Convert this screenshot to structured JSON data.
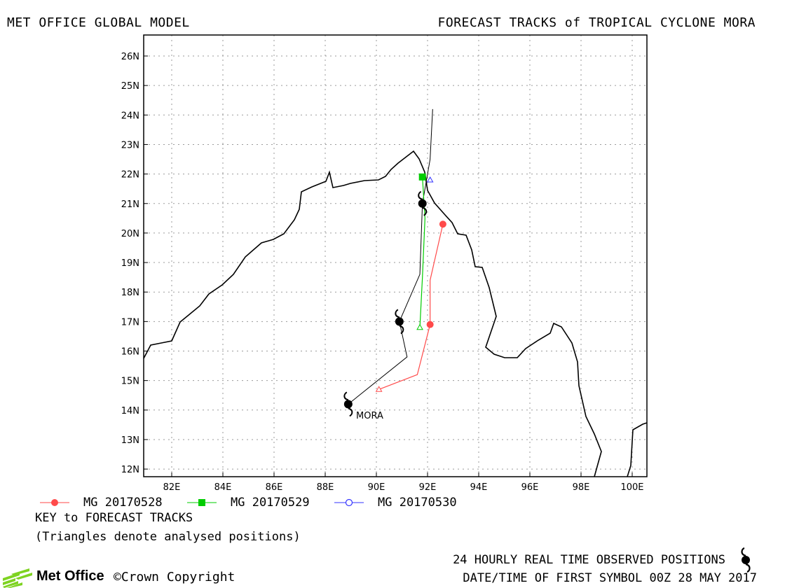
{
  "header": {
    "model_title": "MET OFFICE GLOBAL MODEL",
    "chart_title": "FORECAST TRACKS of TROPICAL CYCLONE MORA"
  },
  "map": {
    "lat_labels": [
      "26N",
      "25N",
      "24N",
      "23N",
      "22N",
      "21N",
      "20N",
      "19N",
      "18N",
      "17N",
      "16N",
      "15N",
      "14N",
      "13N",
      "12N"
    ],
    "lon_labels": [
      "82E",
      "84E",
      "86E",
      "88E",
      "90E",
      "92E",
      "94E",
      "96E",
      "98E",
      "100E"
    ],
    "storm_label": "MORA",
    "observed_positions": [
      {
        "lon": 88.9,
        "lat": 14.2
      },
      {
        "lon": 90.9,
        "lat": 17.0
      },
      {
        "lon": 91.8,
        "lat": 21.0
      }
    ],
    "forecast_tracks": [
      {
        "name": "MG 20170528",
        "color": "#ff4a4a",
        "marker": "filled-circle",
        "analysed": {
          "lon": 90.1,
          "lat": 14.7
        },
        "track": [
          [
            90.1,
            14.7
          ],
          [
            91.6,
            15.2
          ],
          [
            92.1,
            16.9
          ],
          [
            92.1,
            18.4
          ],
          [
            92.6,
            20.3
          ]
        ],
        "symbols": [
          [
            92.1,
            16.9
          ],
          [
            92.6,
            20.3
          ]
        ]
      },
      {
        "name": "MG 20170529",
        "color": "#00cc00",
        "marker": "filled-square",
        "analysed": {
          "lon": 91.7,
          "lat": 16.8
        },
        "track": [
          [
            91.7,
            16.8
          ],
          [
            91.8,
            18.5
          ],
          [
            91.9,
            20.5
          ],
          [
            91.8,
            21.9
          ]
        ],
        "symbols": [
          [
            91.8,
            21.9
          ]
        ]
      },
      {
        "name": "MG 20170530",
        "color": "#3333ff",
        "marker": "open-circle",
        "analysed": {
          "lon": 92.1,
          "lat": 21.8
        },
        "track": [
          [
            92.1,
            21.8
          ]
        ],
        "symbols": []
      }
    ]
  },
  "legend": {
    "items": [
      "MG 20170528",
      "MG 20170529",
      "MG 20170530"
    ],
    "key_title": "KEY to FORECAST TRACKS",
    "key_note": "(Triangles denote analysed positions)"
  },
  "footer": {
    "observed_label": "24 HOURLY REAL TIME OBSERVED POSITIONS",
    "first_symbol": "DATE/TIME OF FIRST SYMBOL 00Z 28 MAY 2017",
    "logo_text": "Met Office",
    "copyright": "©Crown Copyright"
  }
}
